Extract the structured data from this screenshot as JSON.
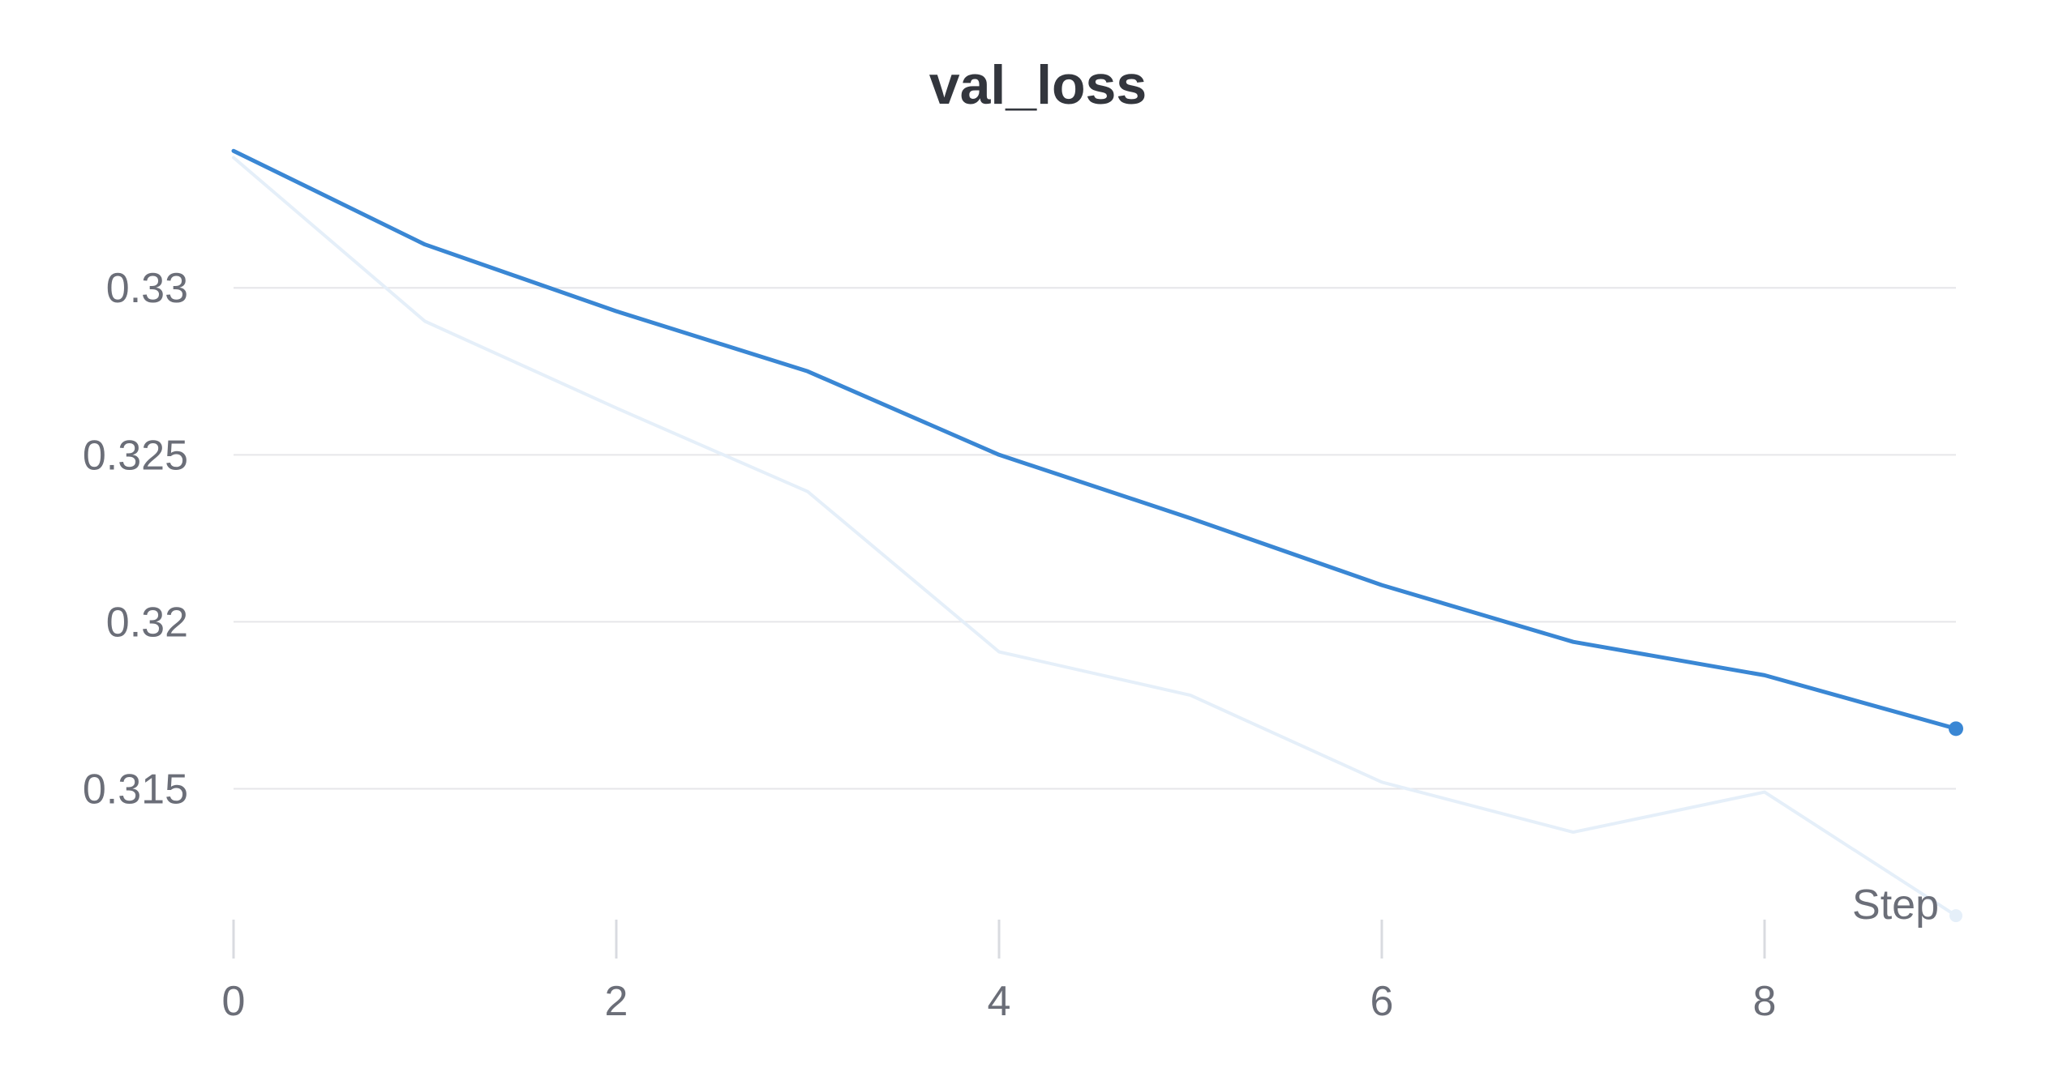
{
  "chart_data": {
    "type": "line",
    "title": "val_loss",
    "xlabel": "Step",
    "ylabel": "",
    "xlim": [
      0,
      9
    ],
    "ylim": [
      0.3105,
      0.3343
    ],
    "x_ticks": [
      0,
      2,
      4,
      6,
      8
    ],
    "x_tick_labels": [
      "0",
      "2",
      "4",
      "6",
      "8"
    ],
    "y_ticks": [
      0.315,
      0.32,
      0.325,
      0.33
    ],
    "y_tick_labels": [
      "0.315",
      "0.32",
      "0.325",
      "0.33"
    ],
    "grid": true,
    "colors": {
      "smoothed": "#3a87d4",
      "raw": "#e5eff9",
      "grid": "#e6e6e9",
      "axis_tick": "#d9dbe0"
    },
    "series": [
      {
        "role": "raw",
        "x": [
          0,
          1,
          2,
          3,
          4,
          5,
          6,
          7,
          8,
          9
        ],
        "values": [
          0.3339,
          0.329,
          0.3264,
          0.3239,
          0.3191,
          0.3178,
          0.3152,
          0.3137,
          0.3149,
          0.3112
        ]
      },
      {
        "role": "smoothed",
        "x": [
          0,
          1,
          2,
          3,
          4,
          5,
          6,
          7,
          8,
          9
        ],
        "values": [
          0.3341,
          0.3313,
          0.3293,
          0.3275,
          0.325,
          0.3231,
          0.3211,
          0.3194,
          0.3184,
          0.3168
        ]
      }
    ]
  }
}
